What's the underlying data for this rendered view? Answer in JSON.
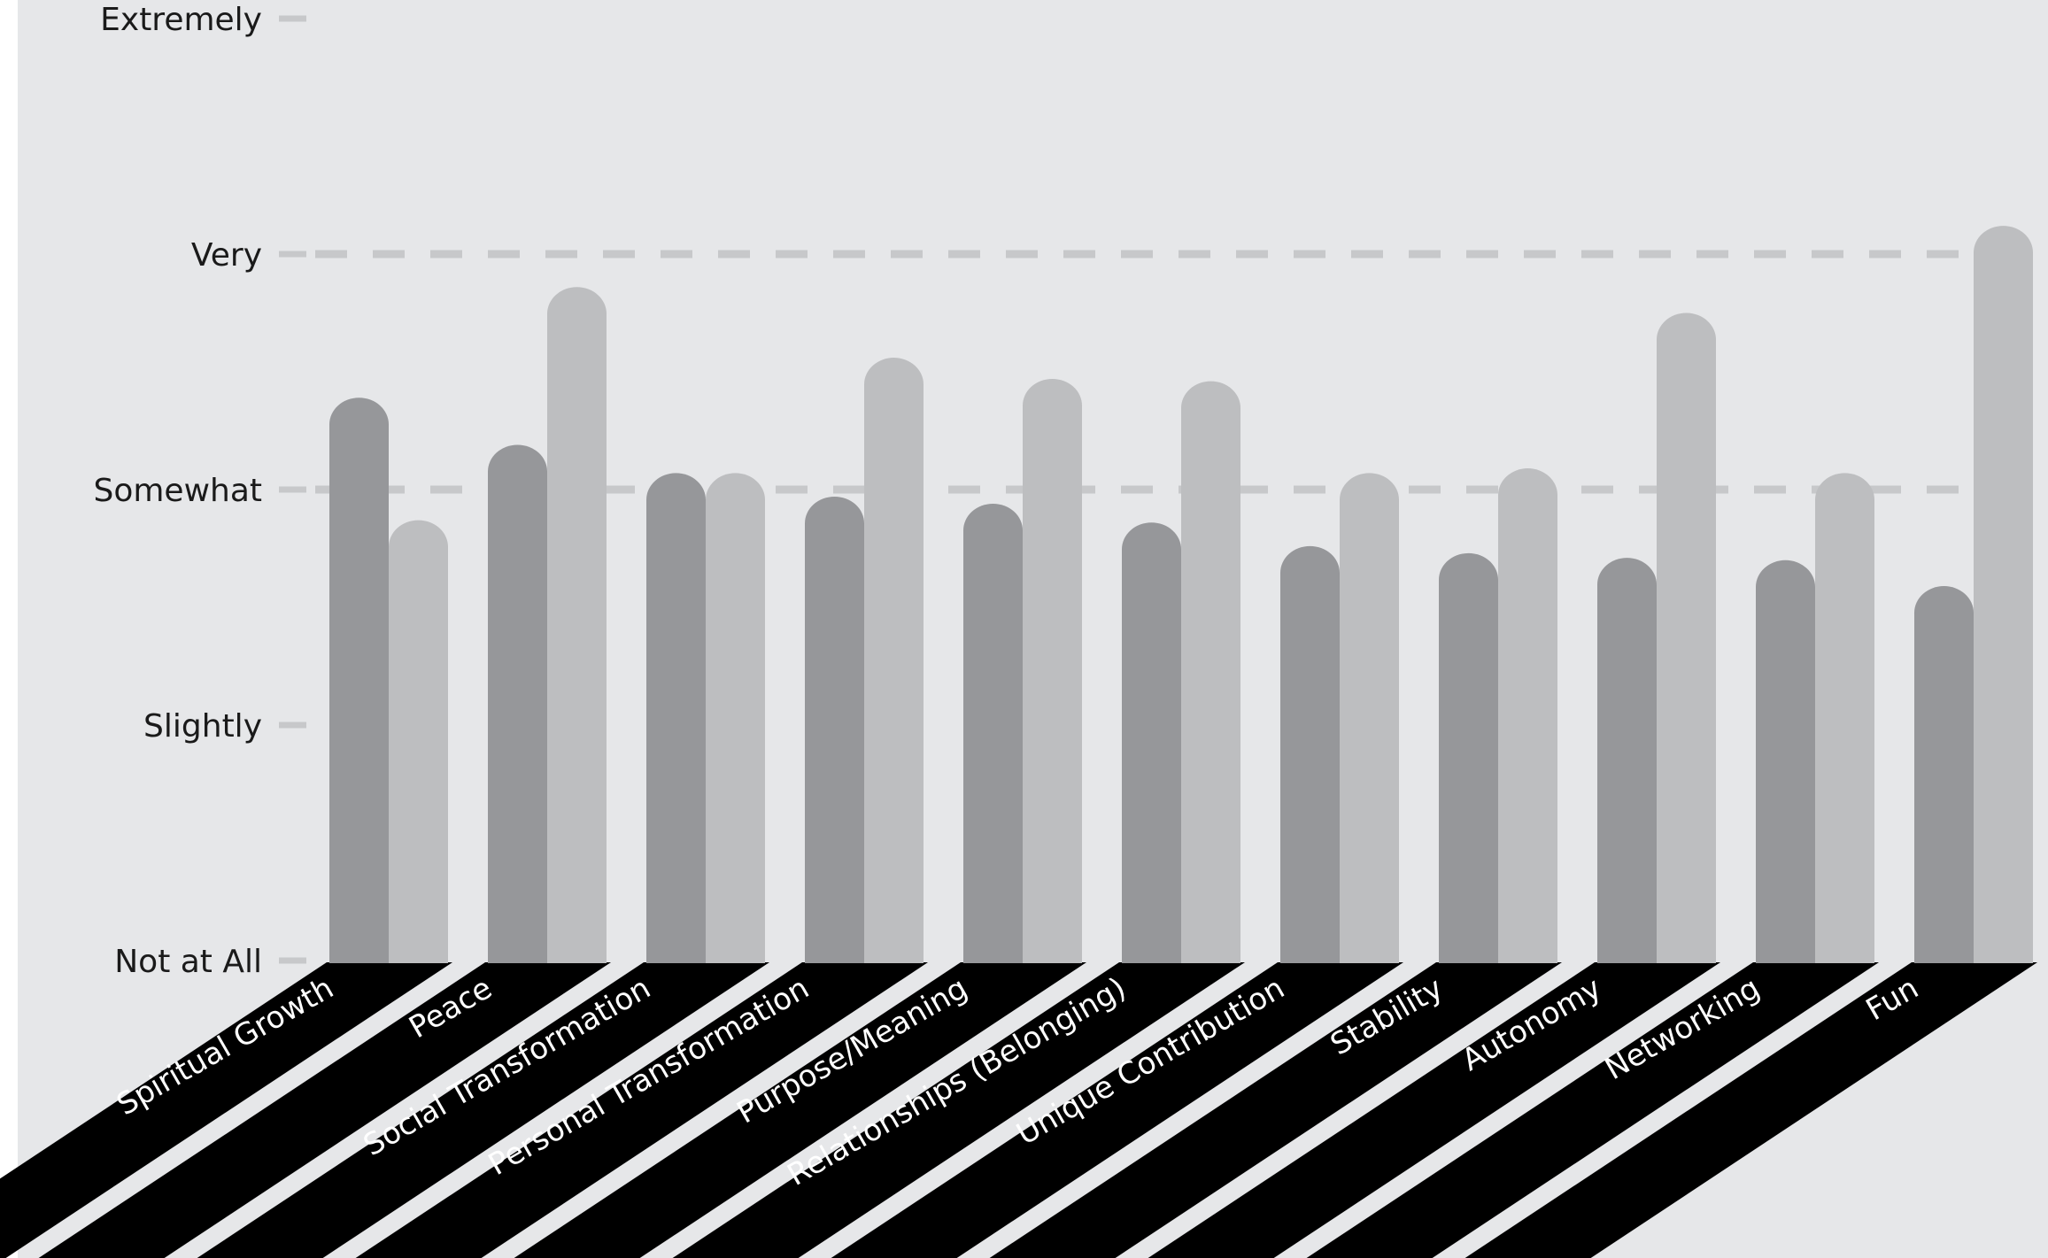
{
  "chart_data": {
    "type": "bar",
    "title": "",
    "xlabel": "",
    "ylabel": "",
    "y_tick_labels": [
      "Not at All",
      "Slightly",
      "Somewhat",
      "Very",
      "Extremely"
    ],
    "ylim": [
      0,
      4
    ],
    "grid": "dashed horizontal at Somewhat and Very",
    "legend": "none",
    "colors": {
      "series_1": "#96979a",
      "series_2": "#bdbec0",
      "background": "#e6e7e9",
      "floor": "#000000",
      "grid": "#c7c8ca"
    },
    "categories": [
      "Spiritual Growth",
      "Peace",
      "Social Transformation",
      "Personal Transformation",
      "Purpose/Meaning",
      "Relationships (Belonging)",
      "Unique Contribution",
      "Stability",
      "Autonomy",
      "Networking",
      "Fun"
    ],
    "series": [
      {
        "values": [
          2.39,
          2.19,
          2.07,
          1.97,
          1.94,
          1.86,
          1.76,
          1.73,
          1.71,
          1.7,
          1.59
        ]
      },
      {
        "values": [
          1.87,
          2.86,
          2.07,
          2.56,
          2.47,
          2.46,
          2.07,
          2.09,
          2.75,
          2.07,
          3.12
        ]
      }
    ]
  }
}
